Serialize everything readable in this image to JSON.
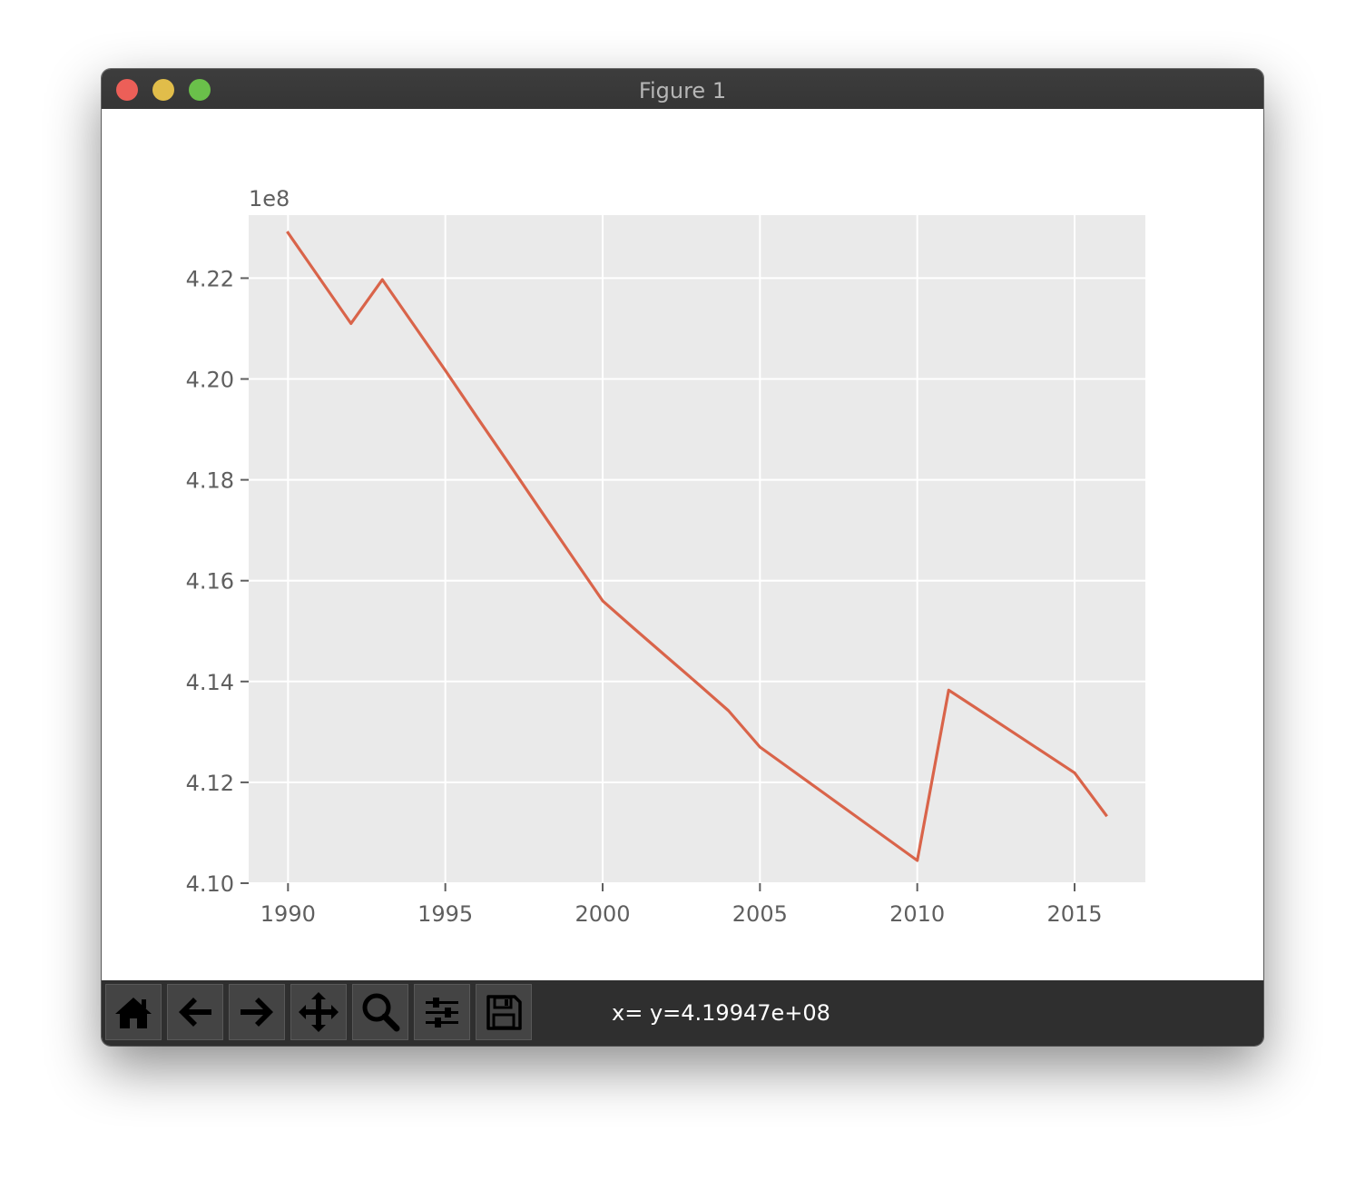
{
  "window": {
    "title": "Figure 1"
  },
  "toolbar": {
    "tools": [
      {
        "name": "home-icon"
      },
      {
        "name": "back-arrow-icon"
      },
      {
        "name": "forward-arrow-icon"
      },
      {
        "name": "pan-move-icon"
      },
      {
        "name": "zoom-magnifier-icon"
      },
      {
        "name": "configure-subplots-icon"
      },
      {
        "name": "save-floppy-icon"
      }
    ],
    "coords": "x= y=4.19947e+08"
  },
  "colors": {
    "line": "#d9644a",
    "plot_bg": "#eaeaea",
    "grid": "#ffffff",
    "tick_text": "#5f5f5f"
  },
  "chart_data": {
    "type": "line",
    "title": "",
    "xlabel": "",
    "ylabel": "",
    "offset_label": "1e8",
    "grid": true,
    "xlim": [
      1988.75,
      2017.25
    ],
    "ylim": [
      4.1,
      4.2325
    ],
    "xticks": [
      1990,
      1995,
      2000,
      2005,
      2010,
      2015
    ],
    "xtick_labels": [
      "1990",
      "1995",
      "2000",
      "2005",
      "2010",
      "2015"
    ],
    "yticks": [
      4.1,
      4.12,
      4.14,
      4.16,
      4.18,
      4.2,
      4.22
    ],
    "ytick_labels": [
      "4.10",
      "4.12",
      "4.14",
      "4.16",
      "4.18",
      "4.20",
      "4.22"
    ],
    "series": [
      {
        "x": [
          1990,
          1991,
          1992,
          1993,
          1994,
          1995,
          1996,
          1997,
          1998,
          1999,
          2000,
          2001,
          2002,
          2003,
          2004,
          2005,
          2006,
          2007,
          2008,
          2009,
          2010,
          2011,
          2012,
          2013,
          2014,
          2015,
          2016
        ],
        "values": [
          4.229,
          4.22,
          4.211,
          4.2197,
          4.2107,
          4.2017,
          4.1925,
          4.1834,
          4.1742,
          4.1651,
          4.156,
          4.1505,
          4.1451,
          4.1397,
          4.1342,
          4.127,
          4.1225,
          4.118,
          4.1135,
          4.109,
          4.1045,
          4.1383,
          4.1342,
          4.1301,
          4.126,
          4.1219,
          4.1135
        ]
      }
    ]
  }
}
